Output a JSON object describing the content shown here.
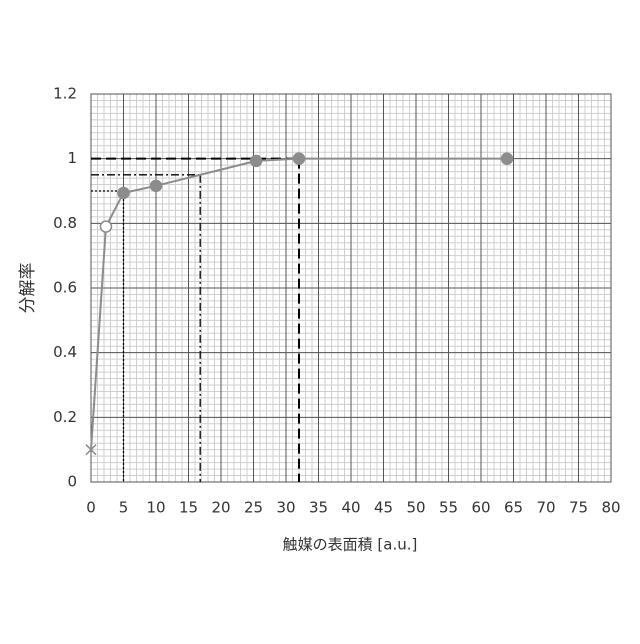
{
  "chart_data": {
    "type": "line",
    "x_label": "触媒の表面積 [a.u.]",
    "y_label": "分解率",
    "series": [
      {
        "color": "#8c8c8c",
        "x": [
          0,
          2.3,
          5,
          10,
          25.4,
          32,
          64
        ],
        "values": [
          0.1,
          0.79,
          0.894,
          0.916,
          0.993,
          1.0,
          1.0
        ],
        "markers": [
          "cross",
          "open",
          "filled",
          "filled",
          "filled",
          "filled",
          "filled"
        ]
      }
    ],
    "reference_lines": [
      {
        "x": 32,
        "y": 1.0,
        "style": "dashed"
      },
      {
        "x": 16.8,
        "y": 0.95,
        "style": "dashdot"
      },
      {
        "x": 5,
        "y": 0.9,
        "style": "dotted"
      }
    ],
    "xlim": [
      0,
      80
    ],
    "xticks": [
      0,
      5,
      10,
      15,
      20,
      25,
      30,
      35,
      40,
      45,
      50,
      55,
      60,
      65,
      70,
      75,
      80
    ],
    "ylim": [
      0,
      1.2
    ],
    "yticks": [
      0,
      0.2,
      0.4,
      0.6,
      0.8,
      1,
      1.2
    ],
    "grid": true,
    "minor_grid": {
      "x": 1,
      "y": 0.02
    }
  }
}
